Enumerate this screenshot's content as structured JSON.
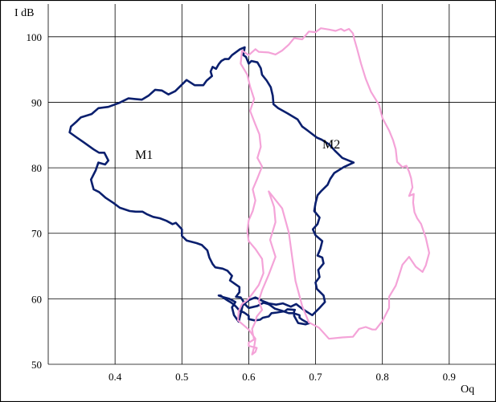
{
  "chart_data": {
    "type": "line",
    "title": "",
    "xlabel": "Oq",
    "ylabel": "I dB",
    "xlim": [
      0.3,
      0.97
    ],
    "ylim": [
      50,
      105
    ],
    "x_ticks": [
      0.4,
      0.5,
      0.6,
      0.7,
      0.8,
      0.9
    ],
    "y_ticks": [
      50,
      60,
      70,
      80,
      90,
      100
    ],
    "grid": true,
    "legend": "none",
    "series": [
      {
        "name": "M1",
        "color": "#0a1f6e",
        "closed": true,
        "x": [
          0.56,
          0.571,
          0.58,
          0.575,
          0.578,
          0.585,
          0.591,
          0.6,
          0.61,
          0.62,
          0.63,
          0.641,
          0.651,
          0.663,
          0.671,
          0.681,
          0.695,
          0.705,
          0.714,
          0.712,
          0.702,
          0.7,
          0.706,
          0.704,
          0.712,
          0.71,
          0.703,
          0.707,
          0.71,
          0.7,
          0.696,
          0.703,
          0.706,
          0.698,
          0.7,
          0.703,
          0.708,
          0.718,
          0.722,
          0.728,
          0.742,
          0.757,
          0.74,
          0.73,
          0.72,
          0.709,
          0.702,
          0.688,
          0.68,
          0.673,
          0.658,
          0.644,
          0.637,
          0.636,
          0.633,
          0.627,
          0.62,
          0.618,
          0.613,
          0.604,
          0.6,
          0.596,
          0.592,
          0.594,
          0.587,
          0.575,
          0.57,
          0.564,
          0.559,
          0.555,
          0.551,
          0.546,
          0.543,
          0.545,
          0.537,
          0.532,
          0.519,
          0.507,
          0.5,
          0.49,
          0.48,
          0.47,
          0.46,
          0.45,
          0.44,
          0.43,
          0.42,
          0.406,
          0.39,
          0.375,
          0.365,
          0.349,
          0.343,
          0.334,
          0.332,
          0.343,
          0.353,
          0.368,
          0.376,
          0.384,
          0.39,
          0.385,
          0.375,
          0.371,
          0.364,
          0.366,
          0.368,
          0.376,
          0.386,
          0.398,
          0.407,
          0.422,
          0.431,
          0.441,
          0.448,
          0.457,
          0.467,
          0.477,
          0.486,
          0.491,
          0.5,
          0.5,
          0.507,
          0.522,
          0.53,
          0.538,
          0.541,
          0.546,
          0.55,
          0.561,
          0.568,
          0.575,
          0.572,
          0.579,
          0.586,
          0.586,
          0.581,
          0.588,
          0.59,
          0.592,
          0.592,
          0.6,
          0.613,
          0.622,
          0.629,
          0.631,
          0.639,
          0.649,
          0.66,
          0.667,
          0.676,
          0.676,
          0.68,
          0.687,
          0.691,
          0.685,
          0.674,
          0.668,
          0.668,
          0.669,
          0.658,
          0.654,
          0.642,
          0.634,
          0.63,
          0.621,
          0.617,
          0.609,
          0.6,
          0.6,
          0.593,
          0.586,
          0.582,
          0.578,
          0.574,
          0.569,
          0.563,
          0.558,
          0.555
        ],
        "y": [
          60.3,
          60,
          59.5,
          58.7,
          57.5,
          56.5,
          59,
          59.8,
          60.2,
          59.7,
          59.3,
          59.1,
          59.3,
          58.8,
          59.2,
          58.4,
          57.5,
          58.5,
          59.5,
          60.5,
          61.5,
          62.5,
          63.3,
          64.4,
          65.4,
          66.3,
          66.6,
          67.6,
          68.8,
          69.7,
          70.6,
          71.4,
          72.4,
          73.4,
          74.6,
          75.8,
          76.4,
          77.4,
          78.3,
          79.2,
          80.1,
          80.8,
          81.5,
          82.5,
          83.6,
          84.3,
          84.6,
          85.7,
          86.3,
          87.4,
          88.3,
          89.1,
          89.7,
          91,
          92.3,
          93.3,
          94.2,
          95.2,
          96.1,
          96.3,
          95.9,
          96.9,
          97.2,
          98.4,
          98.1,
          97.2,
          96.6,
          96.6,
          96.3,
          95.8,
          95.1,
          95.4,
          94.7,
          94,
          93.3,
          92.6,
          92.6,
          93.4,
          92.7,
          91.7,
          91.2,
          91.8,
          91.9,
          91,
          90.4,
          90.5,
          90.6,
          89.9,
          89.3,
          89.1,
          88.2,
          87.7,
          87.1,
          86.3,
          85.4,
          84.6,
          83.9,
          82.8,
          82.3,
          82.3,
          81.1,
          80.5,
          80.8,
          79.6,
          78.2,
          77.4,
          76.7,
          76.3,
          75.4,
          74.6,
          73.9,
          73.4,
          73.3,
          73.3,
          72.9,
          72.5,
          72.3,
          71.9,
          71.4,
          71.6,
          70.6,
          69.6,
          68.9,
          68.5,
          68.2,
          67.4,
          66.3,
          65.3,
          64.8,
          64.6,
          64.3,
          63.5,
          62.8,
          62.3,
          61.8,
          61,
          60.3,
          60.2,
          59.9,
          59.6,
          59.4,
          58.6,
          58.9,
          59.4,
          59.2,
          59.1,
          58.5,
          58.2,
          57.8,
          57.8,
          57.5,
          57.1,
          56.8,
          56.4,
          56.3,
          56.1,
          56.3,
          57.4,
          58.1,
          58.3,
          58.4,
          58.1,
          57.9,
          57.8,
          57.3,
          57.1,
          56.8,
          56.7,
          56.9,
          57.4,
          57.9,
          58.2,
          58.7,
          59.1,
          59.4,
          59.7,
          60.1,
          60.5,
          60.5
        ]
      },
      {
        "name": "M2",
        "color": "#f4a3d8",
        "closed": true,
        "x": [
          0.63,
          0.65,
          0.66,
          0.665,
          0.67,
          0.68,
          0.69,
          0.705,
          0.72,
          0.74,
          0.756,
          0.765,
          0.775,
          0.785,
          0.79,
          0.8,
          0.81,
          0.81,
          0.82,
          0.825,
          0.83,
          0.84,
          0.85,
          0.86,
          0.865,
          0.87,
          0.865,
          0.858,
          0.852,
          0.848,
          0.846,
          0.847,
          0.84,
          0.845,
          0.843,
          0.84,
          0.836,
          0.83,
          0.822,
          0.82,
          0.816,
          0.81,
          0.8,
          0.795,
          0.783,
          0.775,
          0.768,
          0.762,
          0.758,
          0.756,
          0.75,
          0.743,
          0.738,
          0.73,
          0.72,
          0.708,
          0.7,
          0.69,
          0.68,
          0.668,
          0.66,
          0.65,
          0.64,
          0.63,
          0.615,
          0.61,
          0.6,
          0.59,
          0.588,
          0.598,
          0.602,
          0.608,
          0.602,
          0.61,
          0.616,
          0.618,
          0.613,
          0.62,
          0.613,
          0.606,
          0.61,
          0.606,
          0.6,
          0.598,
          0.6,
          0.61,
          0.62,
          0.622,
          0.615,
          0.605,
          0.598,
          0.59,
          0.585,
          0.584,
          0.6,
          0.61,
          0.608,
          0.605,
          0.61,
          0.612,
          0.6,
          0.6,
          0.608,
          0.606,
          0.605,
          0.61,
          0.612,
          0.62,
          0.615,
          0.62,
          0.63,
          0.64,
          0.632,
          0.64,
          0.638,
          0.63
        ],
        "y": [
          76.4,
          73.8,
          70.1,
          66.4,
          62.7,
          58.9,
          56.4,
          55.6,
          53.9,
          54.1,
          54.2,
          55.4,
          55.7,
          55.3,
          55.3,
          56.6,
          58.6,
          60.3,
          62,
          63.6,
          65.2,
          66.4,
          64.9,
          64.1,
          65.1,
          67,
          69.3,
          71.4,
          72.3,
          73.2,
          74.7,
          76,
          75.7,
          77,
          78.4,
          79.4,
          80.3,
          80.1,
          80.9,
          82.8,
          84.2,
          85.7,
          87.6,
          89.6,
          91.6,
          93.6,
          95.9,
          98.2,
          99.6,
          100.5,
          101.2,
          100.9,
          101.2,
          100.9,
          101.1,
          101.3,
          100.7,
          100.8,
          99.6,
          99.8,
          98.8,
          97.9,
          97.3,
          97.6,
          97.7,
          98.1,
          97.2,
          97.9,
          95.9,
          94.2,
          92.4,
          90.5,
          88.7,
          86.6,
          85.1,
          83.2,
          81.5,
          80.2,
          78.4,
          76.7,
          75,
          73.4,
          72,
          70.3,
          68.8,
          67.6,
          66.1,
          63.9,
          62.1,
          60.7,
          59.8,
          59.2,
          58.1,
          56.7,
          55.3,
          53.9,
          52.6,
          51.5,
          51.9,
          52.5,
          52.8,
          53.3,
          53.8,
          54.7,
          55.4,
          56.5,
          57.3,
          58.3,
          59.7,
          61.3,
          63.7,
          66.4,
          69,
          71.7,
          74,
          76.4
        ]
      }
    ],
    "annotations": [
      "M1",
      "M2"
    ]
  }
}
